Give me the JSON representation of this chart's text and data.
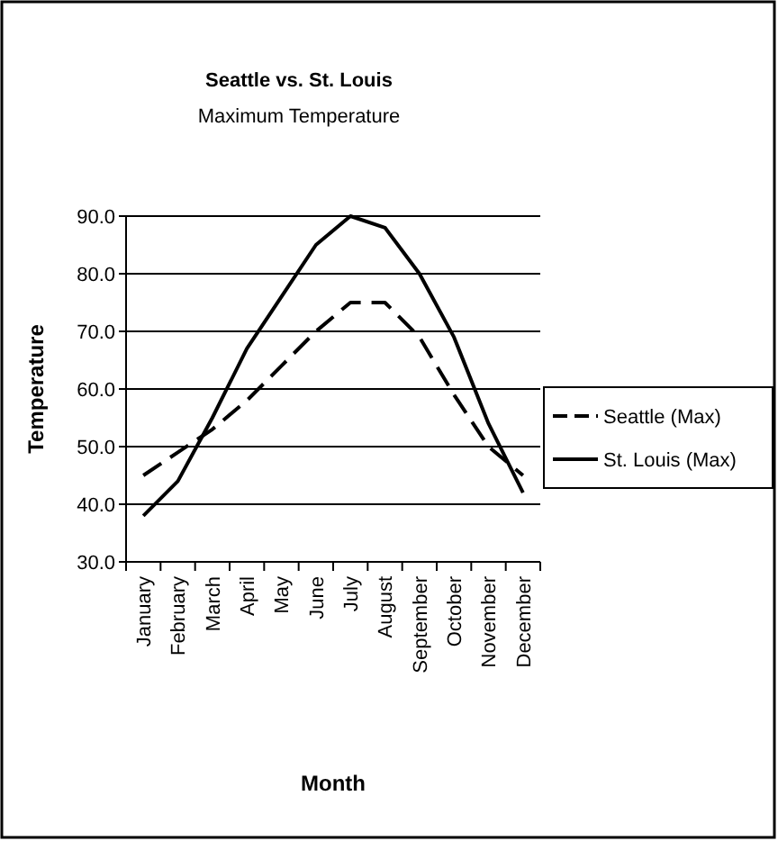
{
  "chart_data": {
    "type": "line",
    "title": "Seattle vs. St. Louis",
    "subtitle": "Maximum Temperature",
    "xlabel": "Month",
    "ylabel": "Temperature",
    "categories": [
      "January",
      "February",
      "March",
      "April",
      "May",
      "June",
      "July",
      "August",
      "September",
      "October",
      "November",
      "December"
    ],
    "series": [
      {
        "name": "Seattle (Max)",
        "color": "#000000",
        "line_style": "dashed",
        "values": [
          45,
          49,
          53,
          58,
          64,
          70,
          75,
          75,
          69,
          59,
          50,
          45
        ]
      },
      {
        "name": "St. Louis (Max)",
        "color": "#000000",
        "line_style": "solid",
        "values": [
          38,
          44,
          55,
          67,
          76,
          85,
          90,
          88,
          80,
          69,
          54,
          42
        ]
      }
    ],
    "ylim": [
      30,
      90
    ],
    "yticks": [
      {
        "value": 30,
        "label": "30.0"
      },
      {
        "value": 40,
        "label": "40.0"
      },
      {
        "value": 50,
        "label": "50.0"
      },
      {
        "value": 60,
        "label": "60.0"
      },
      {
        "value": 70,
        "label": "70.0"
      },
      {
        "value": 80,
        "label": "80.0"
      },
      {
        "value": 90,
        "label": "90.0"
      }
    ],
    "grid": "y",
    "legend": "right",
    "marker": "none"
  }
}
